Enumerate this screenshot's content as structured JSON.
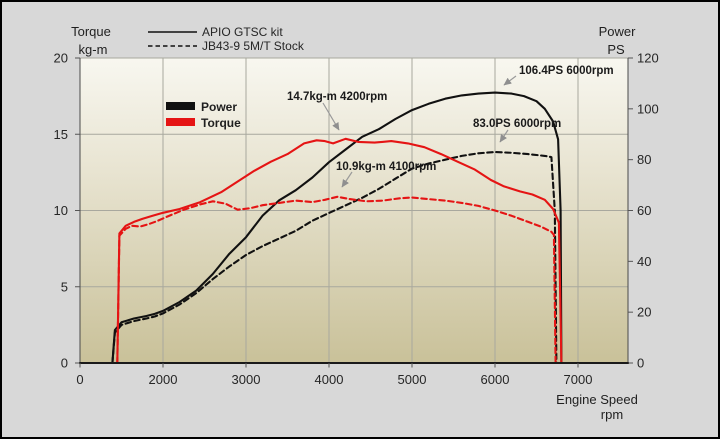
{
  "titles": {
    "torque": {
      "line1": "Torque",
      "line2": "kg-m"
    },
    "power": {
      "line1": "Power",
      "line2": "PS"
    },
    "x": {
      "line1": "Engine Speed",
      "line2": "rpm"
    }
  },
  "legend": {
    "entries": [
      {
        "label": "APIO GTSC kit",
        "style": "solid"
      },
      {
        "label": "JB43-9 5M/T Stock",
        "style": "dashed"
      }
    ]
  },
  "inner_legend": [
    {
      "label": "Power",
      "color": "#111111"
    },
    {
      "label": "Torque",
      "color": "#e51414"
    }
  ],
  "annotations": [
    {
      "id": "apio-torque-peak",
      "label": "14.7kg-m  4200rpm",
      "rpm": 4200,
      "value": 14.7,
      "axis": "torque"
    },
    {
      "id": "stock-torque-peak",
      "label": "10.9kg-m  4100rpm",
      "rpm": 4100,
      "value": 10.9,
      "axis": "torque"
    },
    {
      "id": "apio-power-peak",
      "label": "106.4PS  6000rpm",
      "rpm": 6000,
      "value": 106.4,
      "axis": "power"
    },
    {
      "id": "stock-power-peak",
      "label": "83.0PS  6000rpm",
      "rpm": 6000,
      "value": 83.0,
      "axis": "power"
    }
  ],
  "colors": {
    "power": "#111111",
    "torque": "#e51414",
    "grid": "#a8a89e",
    "arrow": "#9a9a9a",
    "outer_bg": "#d8d8d8",
    "plot_top": "#f8f7f0",
    "plot_mid": "#e9e5d3",
    "plot_bottom": "#c9c199"
  },
  "chart_data": {
    "type": "line",
    "title": "",
    "xlabel": "Engine Speed rpm",
    "x_ticks": [
      0,
      2000,
      3000,
      4000,
      5000,
      6000,
      7000
    ],
    "x_axis_note": "category-style axis: the 0 to 2000 span occupies one tick interval, then 1000 rpm per interval",
    "y_left": {
      "label": "Torque kg-m",
      "range": [
        0,
        20
      ],
      "ticks": [
        0,
        5,
        10,
        15,
        20
      ]
    },
    "y_right": {
      "label": "Power PS",
      "range": [
        0,
        120
      ],
      "ticks": [
        0,
        20,
        40,
        60,
        80,
        100,
        120
      ]
    },
    "grid": true,
    "legend_position": "top-center",
    "series": [
      {
        "id": "apio-power",
        "name": "Power - APIO GTSC kit",
        "axis": "power",
        "color": "#111111",
        "dash": null,
        "points": [
          [
            780,
            0
          ],
          [
            840,
            13
          ],
          [
            1000,
            16
          ],
          [
            1300,
            17.5
          ],
          [
            1600,
            18.5
          ],
          [
            1800,
            19.3
          ],
          [
            2000,
            20.5
          ],
          [
            2200,
            24
          ],
          [
            2400,
            28.5
          ],
          [
            2600,
            35
          ],
          [
            2800,
            43
          ],
          [
            3000,
            49.5
          ],
          [
            3200,
            58
          ],
          [
            3400,
            64
          ],
          [
            3600,
            68
          ],
          [
            3800,
            73
          ],
          [
            4000,
            79
          ],
          [
            4200,
            84
          ],
          [
            4400,
            89
          ],
          [
            4600,
            92
          ],
          [
            4800,
            96
          ],
          [
            5000,
            99.5
          ],
          [
            5200,
            102
          ],
          [
            5400,
            104
          ],
          [
            5600,
            105.3
          ],
          [
            5800,
            106
          ],
          [
            6000,
            106.4
          ],
          [
            6200,
            106
          ],
          [
            6350,
            105
          ],
          [
            6500,
            103
          ],
          [
            6600,
            100
          ],
          [
            6700,
            95
          ],
          [
            6760,
            88
          ],
          [
            6790,
            60
          ],
          [
            6800,
            0
          ]
        ]
      },
      {
        "id": "stock-power",
        "name": "Power - JB43-9 5M/T Stock",
        "axis": "power",
        "color": "#111111",
        "dash": "5.5,3.5",
        "points": [
          [
            780,
            0
          ],
          [
            840,
            12
          ],
          [
            1000,
            15
          ],
          [
            1300,
            16.5
          ],
          [
            1600,
            17.5
          ],
          [
            1800,
            18.3
          ],
          [
            2000,
            19.5
          ],
          [
            2200,
            23
          ],
          [
            2400,
            27.5
          ],
          [
            2600,
            33
          ],
          [
            2800,
            38
          ],
          [
            3000,
            42.5
          ],
          [
            3200,
            46
          ],
          [
            3400,
            49
          ],
          [
            3600,
            52
          ],
          [
            3800,
            56
          ],
          [
            4000,
            59
          ],
          [
            4200,
            62
          ],
          [
            4400,
            65
          ],
          [
            4600,
            68.5
          ],
          [
            4800,
            72.5
          ],
          [
            5000,
            76.5
          ],
          [
            5200,
            78.5
          ],
          [
            5400,
            80
          ],
          [
            5600,
            81.5
          ],
          [
            5800,
            82.5
          ],
          [
            6000,
            83
          ],
          [
            6200,
            82.7
          ],
          [
            6400,
            82.2
          ],
          [
            6600,
            81.5
          ],
          [
            6680,
            81
          ],
          [
            6720,
            60
          ],
          [
            6740,
            0
          ]
        ]
      },
      {
        "id": "apio-torque",
        "name": "Torque - APIO GTSC kit",
        "axis": "torque",
        "color": "#e51414",
        "dash": null,
        "points": [
          [
            900,
            0
          ],
          [
            950,
            8.5
          ],
          [
            1100,
            9.0
          ],
          [
            1300,
            9.25
          ],
          [
            1500,
            9.45
          ],
          [
            1750,
            9.65
          ],
          [
            2000,
            9.85
          ],
          [
            2200,
            10.1
          ],
          [
            2450,
            10.55
          ],
          [
            2700,
            11.2
          ],
          [
            2900,
            11.9
          ],
          [
            3100,
            12.6
          ],
          [
            3300,
            13.2
          ],
          [
            3500,
            13.7
          ],
          [
            3700,
            14.4
          ],
          [
            3850,
            14.6
          ],
          [
            3950,
            14.55
          ],
          [
            4050,
            14.4
          ],
          [
            4200,
            14.7
          ],
          [
            4350,
            14.5
          ],
          [
            4550,
            14.45
          ],
          [
            4750,
            14.55
          ],
          [
            4950,
            14.4
          ],
          [
            5150,
            14.15
          ],
          [
            5350,
            13.7
          ],
          [
            5550,
            13.2
          ],
          [
            5750,
            12.7
          ],
          [
            5950,
            12.0
          ],
          [
            6100,
            11.6
          ],
          [
            6300,
            11.25
          ],
          [
            6450,
            11.05
          ],
          [
            6600,
            10.7
          ],
          [
            6700,
            10.1
          ],
          [
            6770,
            9.2
          ],
          [
            6800,
            0
          ]
        ]
      },
      {
        "id": "stock-torque",
        "name": "Torque - JB43-9 5M/T Stock",
        "axis": "torque",
        "color": "#e51414",
        "dash": "5.5,3.5",
        "points": [
          [
            900,
            0
          ],
          [
            950,
            8.35
          ],
          [
            1100,
            8.8
          ],
          [
            1250,
            9.0
          ],
          [
            1450,
            8.95
          ],
          [
            1650,
            9.1
          ],
          [
            1850,
            9.3
          ],
          [
            2050,
            9.6
          ],
          [
            2250,
            10.05
          ],
          [
            2450,
            10.4
          ],
          [
            2600,
            10.6
          ],
          [
            2750,
            10.45
          ],
          [
            2900,
            10.05
          ],
          [
            3050,
            10.15
          ],
          [
            3200,
            10.35
          ],
          [
            3400,
            10.5
          ],
          [
            3600,
            10.65
          ],
          [
            3800,
            10.55
          ],
          [
            3950,
            10.7
          ],
          [
            4100,
            10.9
          ],
          [
            4250,
            10.75
          ],
          [
            4450,
            10.6
          ],
          [
            4650,
            10.65
          ],
          [
            4850,
            10.8
          ],
          [
            5000,
            10.85
          ],
          [
            5200,
            10.75
          ],
          [
            5400,
            10.65
          ],
          [
            5600,
            10.5
          ],
          [
            5800,
            10.3
          ],
          [
            6000,
            10.0
          ],
          [
            6200,
            9.65
          ],
          [
            6400,
            9.25
          ],
          [
            6550,
            8.95
          ],
          [
            6680,
            8.6
          ],
          [
            6710,
            8.4
          ],
          [
            6730,
            0
          ]
        ]
      }
    ]
  }
}
